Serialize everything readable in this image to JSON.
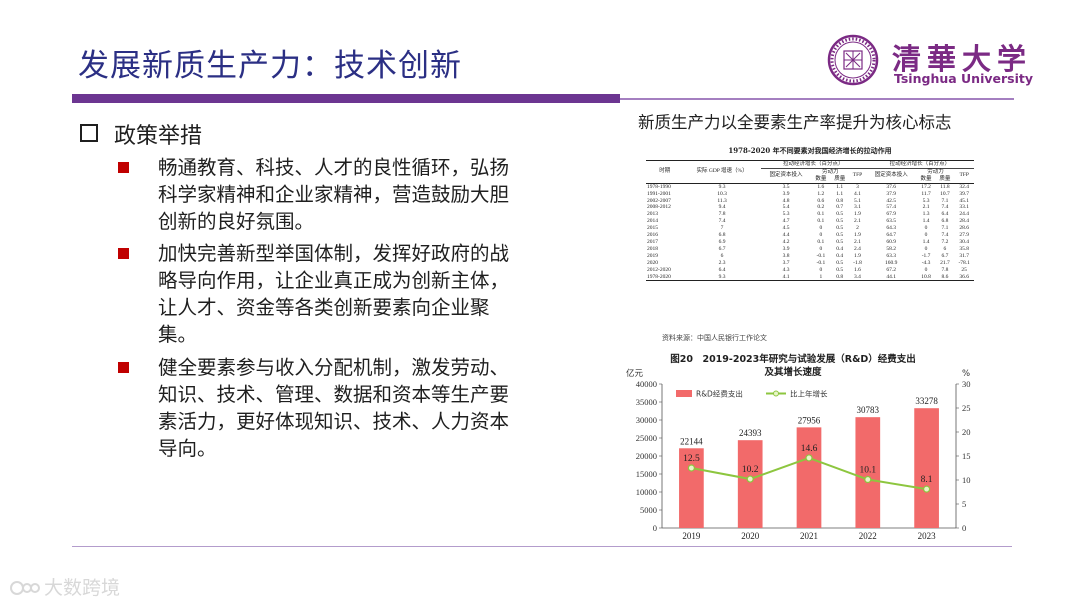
{
  "slide": {
    "title": "发展新质生产力：技术创新",
    "heading": "政策举措",
    "bullets": [
      "畅通教育、科技、人才的良性循环，弘扬科学家精神和企业家精神，营造鼓励大胆创新的良好氛围。",
      "加快完善新型举国体制，发挥好政府的战略导向作用，让企业真正成为创新主体，让人才、资金等各类创新要素向企业聚集。",
      "健全要素参与收入分配机制，激发劳动、知识、技术、管理、数据和资本等生产要素活力，更好体现知识、技术、人力资本导向。"
    ],
    "right_caption": "新质生产力以全要素生产率提升为核心标志"
  },
  "logo": {
    "zh": "清華大学",
    "en": "Tsinghua University"
  },
  "table": {
    "title": "1978-2020 年不同要素对我国经济增长的拉动作用",
    "group1": "拉动经济增长（百分点）",
    "group2": "拉动经济增长（百分点）",
    "col_period": "时期",
    "col_gdp": "实际 GDP 增速（%）",
    "col_capital": "固定资本投入",
    "col_labor": "劳动力",
    "col_tfp": "TFP",
    "col_capital2": "固定资本投入",
    "col_labor2": "劳动力",
    "col_tfp2": "TFP",
    "sub_qty": "数量",
    "sub_quality": "质量",
    "sub_qty2": "数量",
    "sub_quality2": "质量",
    "rows": [
      [
        "1978-1990",
        "9.3",
        "3.5",
        "1.6",
        "1.1",
        "3",
        "37.6",
        "17.2",
        "11.8",
        "32.4"
      ],
      [
        "1991-2001",
        "10.3",
        "3.9",
        "1.2",
        "1.1",
        "4.1",
        "37.9",
        "11.7",
        "10.7",
        "39.7"
      ],
      [
        "2002-2007",
        "11.3",
        "4.8",
        "0.6",
        "0.8",
        "5.1",
        "42.5",
        "5.3",
        "7.1",
        "45.1"
      ],
      [
        "2008-2012",
        "9.4",
        "5.4",
        "0.2",
        "0.7",
        "3.1",
        "57.4",
        "2.1",
        "7.4",
        "33.1"
      ],
      [
        "2013",
        "7.8",
        "5.3",
        "0.1",
        "0.5",
        "1.9",
        "67.9",
        "1.3",
        "6.4",
        "24.4"
      ],
      [
        "2014",
        "7.4",
        "4.7",
        "0.1",
        "0.5",
        "2.1",
        "63.5",
        "1.4",
        "6.8",
        "28.4"
      ],
      [
        "2015",
        "7",
        "4.5",
        "0",
        "0.5",
        "2",
        "64.3",
        "0",
        "7.1",
        "28.6"
      ],
      [
        "2016",
        "6.8",
        "4.4",
        "0",
        "0.5",
        "1.9",
        "64.7",
        "0",
        "7.4",
        "27.9"
      ],
      [
        "2017",
        "6.9",
        "4.2",
        "0.1",
        "0.5",
        "2.1",
        "60.9",
        "1.4",
        "7.2",
        "30.4"
      ],
      [
        "2018",
        "6.7",
        "3.9",
        "0",
        "0.4",
        "2.4",
        "58.2",
        "0",
        "6",
        "35.8"
      ],
      [
        "2019",
        "6",
        "3.8",
        "-0.1",
        "0.4",
        "1.9",
        "63.3",
        "-1.7",
        "6.7",
        "31.7"
      ],
      [
        "2020",
        "2.3",
        "3.7",
        "-0.1",
        "0.5",
        "-1.8",
        "160.9",
        "-4.3",
        "21.7",
        "-78.1"
      ],
      [
        "2012-2020",
        "6.4",
        "4.3",
        "0",
        "0.5",
        "1.6",
        "67.2",
        "0",
        "7.8",
        "25"
      ],
      [
        "1978-2020",
        "9.3",
        "4.1",
        "1",
        "0.8",
        "3.4",
        "44.1",
        "10.8",
        "8.6",
        "36.6"
      ]
    ],
    "source": "资料来源：中国人民银行工作论文"
  },
  "chart_data": {
    "type": "bar",
    "title": "图20　2019-2023年研究与试验发展（R&D）经费支出",
    "subtitle": "及其增长速度",
    "ylabel_left": "亿元",
    "ylabel_right": "%",
    "categories": [
      "2019",
      "2020",
      "2021",
      "2022",
      "2023"
    ],
    "series": [
      {
        "name": "R&D经费支出",
        "type": "bar",
        "axis": "left",
        "values": [
          22144,
          24393,
          27956,
          30783,
          33278
        ]
      },
      {
        "name": "比上年增长",
        "type": "line",
        "axis": "right",
        "values": [
          12.5,
          10.2,
          14.6,
          10.1,
          8.1
        ]
      }
    ],
    "ylim_left": [
      0,
      40000
    ],
    "ylim_right": [
      0,
      30
    ],
    "yticks_left": [
      "0",
      "5000",
      "10000",
      "15000",
      "20000",
      "25000",
      "30000",
      "35000",
      "40000"
    ],
    "yticks_right": [
      "0",
      "5",
      "10",
      "15",
      "20",
      "25",
      "30"
    ],
    "legend": "top-left",
    "colors": {
      "bar": "#f26a6a",
      "line": "#8dc63f",
      "marker": "#e8f5c8"
    }
  },
  "watermark": {
    "text": "大数跨境"
  },
  "colors": {
    "title": "#2b2f84",
    "accent_bar": "#6c3591",
    "bullet": "#c00000",
    "logo": "#7b2a84"
  }
}
